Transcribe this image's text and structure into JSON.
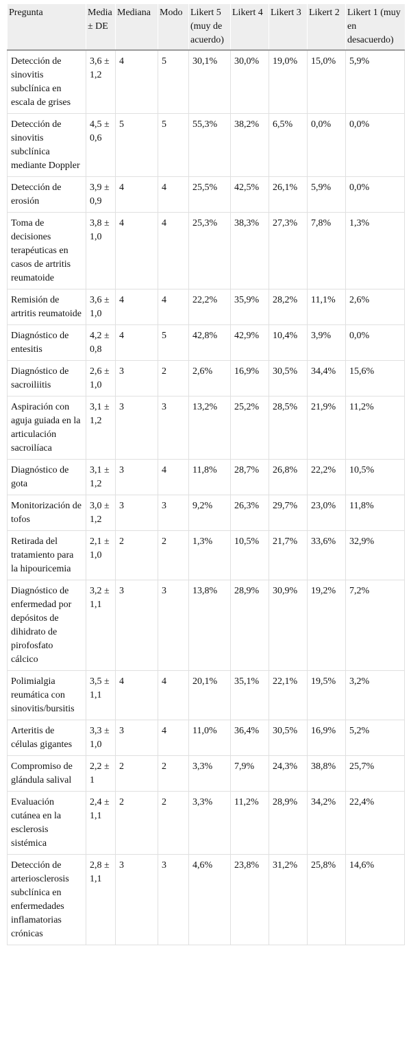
{
  "table": {
    "header": [
      "Pregunta",
      "Media ± DE",
      "Mediana",
      "Modo",
      "Likert 5 (muy de acuerdo)",
      "Likert 4",
      "Likert 3",
      "Likert 2",
      "Likert 1 (muy en desacuerdo)"
    ],
    "rows": [
      [
        "Detección de sinovitis subclínica en escala de grises",
        "3,6 ± 1,2",
        "4",
        "5",
        "30,1%",
        "30,0%",
        "19,0%",
        "15,0%",
        "5,9%"
      ],
      [
        "Detección de sinovitis subclínica mediante Doppler",
        "4,5 ± 0,6",
        "5",
        "5",
        "55,3%",
        "38,2%",
        "6,5%",
        "0,0%",
        "0,0%"
      ],
      [
        "Detección de erosión",
        "3,9 ± 0,9",
        "4",
        "4",
        "25,5%",
        "42,5%",
        "26,1%",
        "5,9%",
        "0,0%"
      ],
      [
        "Toma de decisiones terapéuticas en casos de artritis reumatoide",
        "3,8 ± 1,0",
        "4",
        "4",
        "25,3%",
        "38,3%",
        "27,3%",
        "7,8%",
        "1,3%"
      ],
      [
        "Remisión de artritis reumatoide",
        "3,6 ± 1,0",
        "4",
        "4",
        "22,2%",
        "35,9%",
        "28,2%",
        "11,1%",
        "2,6%"
      ],
      [
        "Diagnóstico de entesitis",
        "4,2 ± 0,8",
        "4",
        "5",
        "42,8%",
        "42,9%",
        "10,4%",
        "3,9%",
        "0,0%"
      ],
      [
        "Diagnóstico de sacroiliitis",
        "2,6 ± 1,0",
        "3",
        "2",
        "2,6%",
        "16,9%",
        "30,5%",
        "34,4%",
        "15,6%"
      ],
      [
        "Aspiración con aguja guiada en la articulación sacroilíaca",
        "3,1 ± 1,2",
        "3",
        "3",
        "13,2%",
        "25,2%",
        "28,5%",
        "21,9%",
        "11,2%"
      ],
      [
        "Diagnóstico de gota",
        "3,1 ± 1,2",
        "3",
        "4",
        "11,8%",
        "28,7%",
        "26,8%",
        "22,2%",
        "10,5%"
      ],
      [
        "Monitorización de tofos",
        "3,0 ± 1,2",
        "3",
        "3",
        "9,2%",
        "26,3%",
        "29,7%",
        "23,0%",
        "11,8%"
      ],
      [
        "Retirada del tratamiento para la hipouricemia",
        "2,1 ± 1,0",
        "2",
        "2",
        "1,3%",
        "10,5%",
        "21,7%",
        "33,6%",
        "32,9%"
      ],
      [
        "Diagnóstico de enfermedad por depósitos de dihidrato de pirofosfato cálcico",
        "3,2 ± 1,1",
        "3",
        "3",
        "13,8%",
        "28,9%",
        "30,9%",
        "19,2%",
        "7,2%"
      ],
      [
        "Polimialgia reumática con sinovitis/bursitis",
        "3,5 ± 1,1",
        "4",
        "4",
        "20,1%",
        "35,1%",
        "22,1%",
        "19,5%",
        "3,2%"
      ],
      [
        "Arteritis de células gigantes",
        "3,3 ± 1,0",
        "3",
        "4",
        "11,0%",
        "36,4%",
        "30,5%",
        "16,9%",
        "5,2%"
      ],
      [
        "Compromiso de glándula salival",
        "2,2 ± 1",
        "2",
        "2",
        "3,3%",
        "7,9%",
        "24,3%",
        "38,8%",
        "25,7%"
      ],
      [
        "Evaluación cutánea en la esclerosis sistémica",
        "2,4 ± 1,1",
        "2",
        "2",
        "3,3%",
        "11,2%",
        "28,9%",
        "34,2%",
        "22,4%"
      ],
      [
        "Detección de arteriosclerosis subclínica en enfermedades inflamatorias crónicas",
        "2,8 ± 1,1",
        "3",
        "3",
        "4,6%",
        "23,8%",
        "31,2%",
        "25,8%",
        "14,6%"
      ]
    ]
  }
}
